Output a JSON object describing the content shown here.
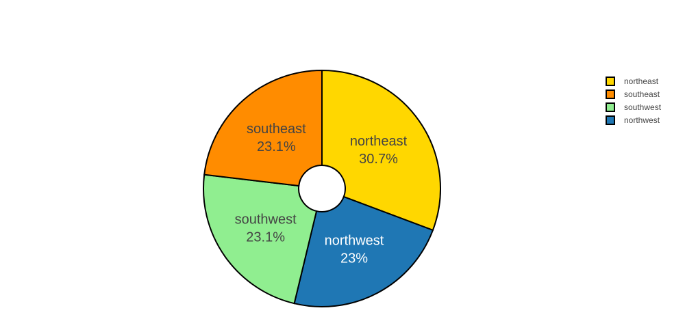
{
  "chart_data": {
    "type": "pie",
    "hole": true,
    "slices": [
      {
        "label": "northeast",
        "percent": 30.7,
        "percent_text": "30.7%",
        "color": "#FFD700",
        "text_color": "#444444"
      },
      {
        "label": "northwest",
        "percent": 23.0,
        "percent_text": "23%",
        "color": "#1F77B4",
        "text_color": "#FFFFFF"
      },
      {
        "label": "southwest",
        "percent": 23.1,
        "percent_text": "23.1%",
        "color": "#90EE90",
        "text_color": "#444444"
      },
      {
        "label": "southeast",
        "percent": 23.1,
        "percent_text": "23.1%",
        "color": "#FF8C00",
        "text_color": "#444444"
      }
    ],
    "direction": "clockwise",
    "start": "top",
    "legend": {
      "placement": "top-right",
      "entries": [
        "northeast",
        "southeast",
        "southwest",
        "northwest"
      ]
    },
    "slice_border_color": "#000000"
  }
}
